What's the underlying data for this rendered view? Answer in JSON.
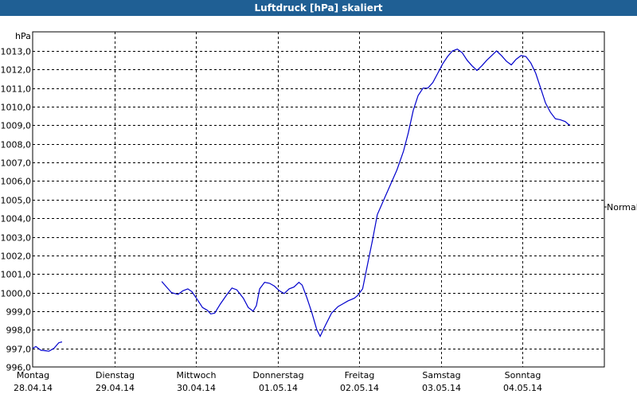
{
  "chart_data": {
    "type": "line",
    "title": "Luftdruck [hPa] skaliert",
    "unit_label": "hPa",
    "side_label": "Normal",
    "ylim": [
      996.0,
      1013.0
    ],
    "y_ticks": [
      "996,0",
      "997,0",
      "998,0",
      "999,0",
      "1000,0",
      "1001,0",
      "1002,0",
      "1003,0",
      "1004,0",
      "1005,0",
      "1006,0",
      "1007,0",
      "1008,0",
      "1009,0",
      "1010,0",
      "1011,0",
      "1012,0",
      "1013,0"
    ],
    "x_labels": [
      {
        "day": "Montag",
        "date": "28.04.14"
      },
      {
        "day": "Dienstag",
        "date": "29.04.14"
      },
      {
        "day": "Mittwoch",
        "date": "30.04.14"
      },
      {
        "day": "Donnerstag",
        "date": "01.05.14"
      },
      {
        "day": "Freitag",
        "date": "02.05.14"
      },
      {
        "day": "Samstag",
        "date": "03.05.14"
      },
      {
        "day": "Sonntag",
        "date": "04.05.14"
      }
    ],
    "grid": true,
    "series": [
      {
        "color": "#0000cc",
        "segments": [
          [
            [
              0.0,
              997.0
            ],
            [
              0.04,
              997.1
            ],
            [
              0.1,
              996.9
            ],
            [
              0.2,
              996.85
            ],
            [
              0.26,
              997.0
            ],
            [
              0.32,
              997.3
            ],
            [
              0.36,
              997.35
            ]
          ],
          [
            [
              1.58,
              1000.6
            ],
            [
              1.64,
              1000.3
            ],
            [
              1.7,
              1000.0
            ],
            [
              1.78,
              999.9
            ],
            [
              1.84,
              1000.1
            ],
            [
              1.9,
              1000.2
            ],
            [
              1.95,
              1000.05
            ],
            [
              2.02,
              999.6
            ],
            [
              2.08,
              999.2
            ],
            [
              2.14,
              999.05
            ],
            [
              2.18,
              998.85
            ],
            [
              2.23,
              998.9
            ],
            [
              2.3,
              999.4
            ],
            [
              2.38,
              999.9
            ],
            [
              2.44,
              1000.25
            ],
            [
              2.5,
              1000.15
            ],
            [
              2.58,
              999.7
            ],
            [
              2.64,
              999.2
            ],
            [
              2.7,
              999.0
            ],
            [
              2.74,
              999.3
            ],
            [
              2.78,
              1000.2
            ],
            [
              2.84,
              1000.55
            ],
            [
              2.9,
              1000.5
            ],
            [
              2.96,
              1000.35
            ],
            [
              3.02,
              1000.1
            ],
            [
              3.08,
              999.95
            ],
            [
              3.14,
              1000.2
            ],
            [
              3.2,
              1000.3
            ],
            [
              3.26,
              1000.55
            ],
            [
              3.3,
              1000.4
            ],
            [
              3.36,
              999.7
            ],
            [
              3.42,
              998.9
            ],
            [
              3.48,
              998.0
            ],
            [
              3.52,
              997.65
            ],
            [
              3.58,
              998.2
            ],
            [
              3.66,
              998.9
            ],
            [
              3.74,
              999.25
            ],
            [
              3.8,
              999.4
            ],
            [
              3.86,
              999.55
            ],
            [
              3.94,
              999.7
            ],
            [
              3.98,
              999.85
            ],
            [
              4.04,
              1000.2
            ],
            [
              4.1,
              1001.5
            ],
            [
              4.16,
              1002.8
            ],
            [
              4.22,
              1004.2
            ],
            [
              4.3,
              1005.0
            ],
            [
              4.38,
              1005.8
            ],
            [
              4.46,
              1006.6
            ],
            [
              4.54,
              1007.6
            ],
            [
              4.6,
              1008.6
            ],
            [
              4.66,
              1009.8
            ],
            [
              4.72,
              1010.6
            ],
            [
              4.78,
              1011.0
            ],
            [
              4.84,
              1011.0
            ],
            [
              4.9,
              1011.3
            ],
            [
              4.96,
              1011.8
            ],
            [
              5.02,
              1012.3
            ],
            [
              5.08,
              1012.7
            ],
            [
              5.14,
              1013.0
            ],
            [
              5.2,
              1013.1
            ],
            [
              5.26,
              1012.9
            ],
            [
              5.32,
              1012.5
            ],
            [
              5.38,
              1012.2
            ],
            [
              5.44,
              1011.95
            ],
            [
              5.5,
              1012.2
            ],
            [
              5.56,
              1012.5
            ],
            [
              5.62,
              1012.75
            ],
            [
              5.68,
              1013.0
            ],
            [
              5.74,
              1012.75
            ],
            [
              5.8,
              1012.45
            ],
            [
              5.86,
              1012.25
            ],
            [
              5.92,
              1012.55
            ],
            [
              5.98,
              1012.75
            ],
            [
              6.04,
              1012.7
            ],
            [
              6.1,
              1012.35
            ],
            [
              6.16,
              1011.8
            ],
            [
              6.22,
              1011.0
            ],
            [
              6.28,
              1010.2
            ],
            [
              6.34,
              1009.7
            ],
            [
              6.4,
              1009.35
            ],
            [
              6.46,
              1009.3
            ],
            [
              6.52,
              1009.2
            ],
            [
              6.56,
              1009.05
            ],
            [
              6.58,
              1009.0
            ]
          ]
        ]
      }
    ]
  }
}
